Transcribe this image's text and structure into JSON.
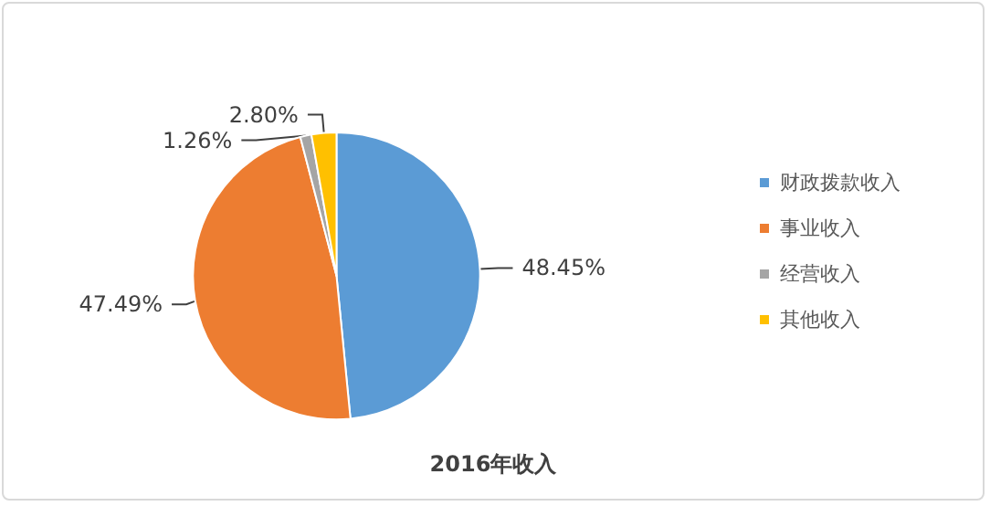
{
  "chart_data": {
    "type": "pie",
    "title": "2016年收入",
    "categories": [
      "财政拨款收入",
      "事业收入",
      "经营收入",
      "其他收入"
    ],
    "values": [
      48.45,
      47.49,
      1.26,
      2.8
    ],
    "value_labels": [
      "48.45%",
      "47.49%",
      "1.26%",
      "2.80%"
    ],
    "colors": [
      "#5b9bd5",
      "#ed7d31",
      "#a5a5a5",
      "#ffc000"
    ],
    "legend": "right"
  }
}
